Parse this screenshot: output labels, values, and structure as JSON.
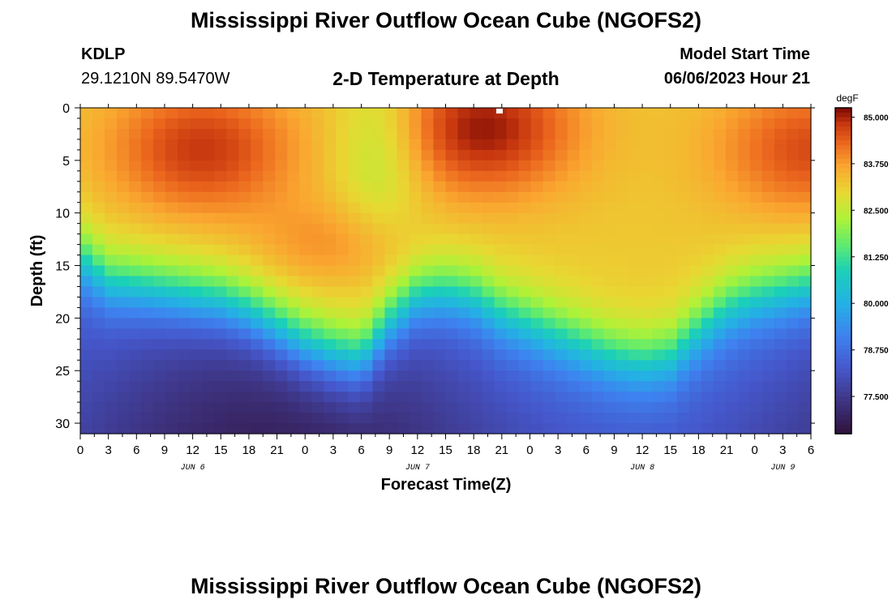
{
  "page": {
    "title": "Mississippi River Outflow Ocean Cube (NGOFS2)",
    "footer_title": "Mississippi River Outflow Ocean Cube (NGOFS2)",
    "station": {
      "name": "KDLP",
      "coords": "29.1210N  89.5470W"
    },
    "subtitle": "2-D Temperature at Depth",
    "model_start": {
      "label": "Model Start Time",
      "value": "06/06/2023 Hour 21"
    }
  },
  "chart_data": {
    "type": "heatmap",
    "title": "2-D Temperature at Depth",
    "xlabel": "Forecast Time(Z)",
    "ylabel": "Depth (ft)",
    "x_ticks": [
      "0",
      "3",
      "6",
      "9",
      "12",
      "15",
      "18",
      "21",
      "0",
      "3",
      "6",
      "9",
      "12",
      "15",
      "18",
      "21",
      "0",
      "3",
      "6",
      "9",
      "12",
      "15",
      "18",
      "21",
      "0",
      "3",
      "6"
    ],
    "x_range_hours": [
      0,
      78
    ],
    "day_labels": [
      {
        "label": "JUN 6",
        "hour": 12
      },
      {
        "label": "JUN 7",
        "hour": 36
      },
      {
        "label": "JUN 8",
        "hour": 60
      },
      {
        "label": "JUN 9",
        "hour": 75
      }
    ],
    "y_ticks": [
      "0",
      "5",
      "10",
      "15",
      "20",
      "25",
      "30"
    ],
    "y_range": [
      0,
      31
    ],
    "y_inverted": true,
    "colorbar": {
      "unit": "degF",
      "min": 76.5,
      "max": 85.25,
      "tick_labels": [
        "85.000",
        "83.750",
        "82.500",
        "81.250",
        "80.000",
        "78.750",
        "77.500"
      ],
      "tick_values": [
        85.0,
        83.75,
        82.5,
        81.25,
        80.0,
        78.75,
        77.5
      ]
    },
    "thermocline_depth_ft": [
      {
        "hour": 0,
        "depth": 11.5
      },
      {
        "hour": 3,
        "depth": 14.0
      },
      {
        "hour": 6,
        "depth": 14.5
      },
      {
        "hour": 9,
        "depth": 15.0
      },
      {
        "hour": 12,
        "depth": 15.5
      },
      {
        "hour": 15,
        "depth": 16.0
      },
      {
        "hour": 18,
        "depth": 17.0
      },
      {
        "hour": 21,
        "depth": 18.5
      },
      {
        "hour": 24,
        "depth": 20.0
      },
      {
        "hour": 27,
        "depth": 21.0
      },
      {
        "hour": 30,
        "depth": 21.5
      },
      {
        "hour": 33,
        "depth": 18.0
      },
      {
        "hour": 36,
        "depth": 15.5
      },
      {
        "hour": 39,
        "depth": 15.0
      },
      {
        "hour": 42,
        "depth": 15.5
      },
      {
        "hour": 45,
        "depth": 17.0
      },
      {
        "hour": 48,
        "depth": 18.0
      },
      {
        "hour": 51,
        "depth": 19.0
      },
      {
        "hour": 54,
        "depth": 20.0
      },
      {
        "hour": 57,
        "depth": 21.0
      },
      {
        "hour": 60,
        "depth": 21.5
      },
      {
        "hour": 63,
        "depth": 21.0
      },
      {
        "hour": 66,
        "depth": 18.5
      },
      {
        "hour": 69,
        "depth": 16.5
      },
      {
        "hour": 72,
        "depth": 15.5
      },
      {
        "hour": 75,
        "depth": 15.0
      },
      {
        "hour": 78,
        "depth": 14.5
      }
    ],
    "surface_warm_cores": [
      {
        "hour": 13,
        "depth": 4,
        "value": 84.8
      },
      {
        "hour": 43,
        "depth": 2,
        "value": 85.1
      },
      {
        "hour": 78,
        "depth": 4,
        "value": 84.6
      }
    ],
    "surface_cool_cores": [
      {
        "hour": 32,
        "depth": 4,
        "value": 82.2
      }
    ],
    "subsurface_warm_cores": [
      {
        "hour": 27,
        "depth": 13,
        "value": 83.9
      }
    ],
    "bottom_value_min": 76.9,
    "bottom_value_max": 78.3
  }
}
